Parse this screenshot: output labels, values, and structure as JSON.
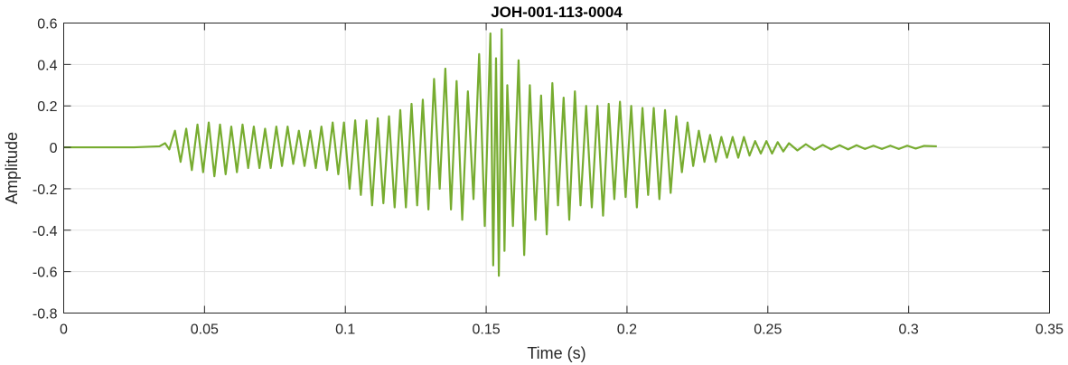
{
  "chart_data": {
    "type": "line",
    "title": "JOH-001-113-0004",
    "xlabel": "Time (s)",
    "ylabel": "Amplitude",
    "xlim": [
      0,
      0.35
    ],
    "ylim": [
      -0.8,
      0.6
    ],
    "grid": true,
    "x_ticks": [
      0,
      0.05,
      0.1,
      0.15,
      0.2,
      0.25,
      0.3,
      0.35
    ],
    "x_tick_labels": [
      "0",
      "0.05",
      "0.1",
      "0.15",
      "0.2",
      "0.25",
      "0.3",
      "0.35"
    ],
    "y_ticks": [
      -0.8,
      -0.6,
      -0.4,
      -0.2,
      0,
      0.2,
      0.4,
      0.6
    ],
    "y_tick_labels": [
      "-0.8",
      "-0.6",
      "-0.4",
      "-0.2",
      "0",
      "0.2",
      "0.4",
      "0.6"
    ],
    "series": [
      {
        "color": "#77ac30",
        "points": [
          [
            0,
            0
          ],
          [
            0.025,
            0
          ],
          [
            0.034,
            0.005
          ],
          [
            0.036,
            0.02
          ],
          [
            0.0375,
            -0.01
          ],
          [
            0.0395,
            0.08
          ],
          [
            0.0415,
            -0.07
          ],
          [
            0.0435,
            0.09
          ],
          [
            0.0455,
            -0.11
          ],
          [
            0.0475,
            0.11
          ],
          [
            0.0495,
            -0.12
          ],
          [
            0.0515,
            0.12
          ],
          [
            0.0535,
            -0.14
          ],
          [
            0.0555,
            0.11
          ],
          [
            0.0575,
            -0.13
          ],
          [
            0.0595,
            0.1
          ],
          [
            0.0615,
            -0.12
          ],
          [
            0.0635,
            0.11
          ],
          [
            0.0655,
            -0.1
          ],
          [
            0.0675,
            0.1
          ],
          [
            0.0695,
            -0.1
          ],
          [
            0.0715,
            0.09
          ],
          [
            0.0735,
            -0.1
          ],
          [
            0.0755,
            0.1
          ],
          [
            0.0775,
            -0.09
          ],
          [
            0.0795,
            0.1
          ],
          [
            0.0815,
            -0.08
          ],
          [
            0.0835,
            0.08
          ],
          [
            0.0855,
            -0.09
          ],
          [
            0.0875,
            0.08
          ],
          [
            0.0895,
            -0.1
          ],
          [
            0.0915,
            0.1
          ],
          [
            0.0935,
            -0.11
          ],
          [
            0.0955,
            0.12
          ],
          [
            0.0975,
            -0.13
          ],
          [
            0.0995,
            0.12
          ],
          [
            0.1015,
            -0.2
          ],
          [
            0.1035,
            0.13
          ],
          [
            0.1055,
            -0.23
          ],
          [
            0.1075,
            0.13
          ],
          [
            0.1095,
            -0.28
          ],
          [
            0.1115,
            0.14
          ],
          [
            0.1135,
            -0.27
          ],
          [
            0.1155,
            0.15
          ],
          [
            0.1175,
            -0.29
          ],
          [
            0.1195,
            0.18
          ],
          [
            0.1215,
            -0.29
          ],
          [
            0.1235,
            0.21
          ],
          [
            0.1255,
            -0.28
          ],
          [
            0.1275,
            0.23
          ],
          [
            0.1295,
            -0.3
          ],
          [
            0.1315,
            0.33
          ],
          [
            0.1335,
            -0.2
          ],
          [
            0.1355,
            0.38
          ],
          [
            0.1375,
            -0.3
          ],
          [
            0.1395,
            0.32
          ],
          [
            0.1415,
            -0.35
          ],
          [
            0.1435,
            0.27
          ],
          [
            0.1455,
            -0.25
          ],
          [
            0.1475,
            0.45
          ],
          [
            0.1495,
            -0.38
          ],
          [
            0.1515,
            0.55
          ],
          [
            0.1525,
            -0.57
          ],
          [
            0.1535,
            0.43
          ],
          [
            0.1545,
            -0.62
          ],
          [
            0.1555,
            0.57
          ],
          [
            0.1565,
            -0.5
          ],
          [
            0.1575,
            0.3
          ],
          [
            0.1595,
            -0.38
          ],
          [
            0.1615,
            0.42
          ],
          [
            0.1635,
            -0.52
          ],
          [
            0.1655,
            0.3
          ],
          [
            0.1675,
            -0.35
          ],
          [
            0.1695,
            0.25
          ],
          [
            0.1715,
            -0.42
          ],
          [
            0.1735,
            0.31
          ],
          [
            0.1755,
            -0.28
          ],
          [
            0.1775,
            0.24
          ],
          [
            0.1795,
            -0.35
          ],
          [
            0.1815,
            0.27
          ],
          [
            0.1835,
            -0.28
          ],
          [
            0.1855,
            0.2
          ],
          [
            0.1875,
            -0.29
          ],
          [
            0.1895,
            0.2
          ],
          [
            0.1915,
            -0.33
          ],
          [
            0.1935,
            0.21
          ],
          [
            0.1955,
            -0.25
          ],
          [
            0.1975,
            0.22
          ],
          [
            0.1995,
            -0.24
          ],
          [
            0.2015,
            0.2
          ],
          [
            0.2035,
            -0.29
          ],
          [
            0.2055,
            0.19
          ],
          [
            0.2075,
            -0.23
          ],
          [
            0.2095,
            0.19
          ],
          [
            0.2115,
            -0.25
          ],
          [
            0.2135,
            0.18
          ],
          [
            0.2155,
            -0.22
          ],
          [
            0.2175,
            0.15
          ],
          [
            0.2195,
            -0.12
          ],
          [
            0.2215,
            0.12
          ],
          [
            0.2235,
            -0.09
          ],
          [
            0.2255,
            0.08
          ],
          [
            0.2275,
            -0.07
          ],
          [
            0.2295,
            0.06
          ],
          [
            0.2315,
            -0.07
          ],
          [
            0.2335,
            0.05
          ],
          [
            0.2355,
            -0.05
          ],
          [
            0.2375,
            0.05
          ],
          [
            0.2395,
            -0.05
          ],
          [
            0.2415,
            0.05
          ],
          [
            0.2435,
            -0.04
          ],
          [
            0.2455,
            0.03
          ],
          [
            0.2475,
            -0.03
          ],
          [
            0.2495,
            0.03
          ],
          [
            0.2515,
            -0.03
          ],
          [
            0.2535,
            0.025
          ],
          [
            0.2555,
            -0.02
          ],
          [
            0.2575,
            0.02
          ],
          [
            0.2605,
            -0.015
          ],
          [
            0.2635,
            0.015
          ],
          [
            0.2665,
            -0.012
          ],
          [
            0.2695,
            0.012
          ],
          [
            0.2725,
            -0.01
          ],
          [
            0.2755,
            0.01
          ],
          [
            0.2785,
            -0.01
          ],
          [
            0.2815,
            0.01
          ],
          [
            0.2845,
            -0.008
          ],
          [
            0.2875,
            0.008
          ],
          [
            0.2905,
            -0.008
          ],
          [
            0.2935,
            0.008
          ],
          [
            0.2965,
            -0.008
          ],
          [
            0.2995,
            0.008
          ],
          [
            0.3025,
            -0.006
          ],
          [
            0.3055,
            0.007
          ],
          [
            0.31,
            0.005
          ]
        ]
      }
    ]
  }
}
